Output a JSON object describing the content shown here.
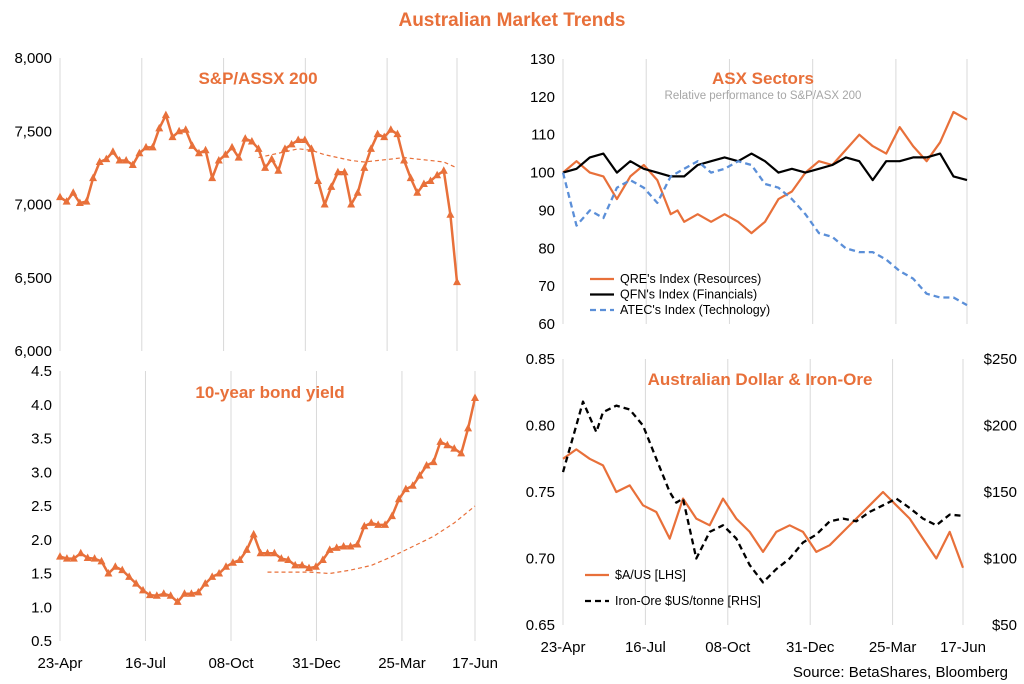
{
  "main_title": "Australian Market Trends",
  "source": "Source: BetaShares, Bloomberg",
  "colors": {
    "accent": "#e8703a",
    "black": "#000000",
    "blue": "#5b8fd8",
    "grid": "#d9d9d9"
  },
  "chart_data": [
    {
      "id": "asx200",
      "type": "line",
      "title": "S&P/ASSX 200",
      "ylim": [
        6000,
        8000
      ],
      "y_ticks": [
        "6,000",
        "6,500",
        "7,000",
        "7,500",
        "8,000"
      ],
      "x_range": [
        0,
        60
      ],
      "series": [
        {
          "style": "solid-triangles",
          "x": [
            0,
            1,
            2,
            3,
            4,
            5,
            6,
            7,
            8,
            9,
            10,
            11,
            12,
            13,
            14,
            15,
            16,
            17,
            18,
            19,
            20,
            21,
            22,
            23,
            24,
            25,
            26,
            27,
            28,
            29,
            30,
            31,
            32,
            33,
            34,
            35,
            36,
            37,
            38,
            39,
            40,
            41,
            42,
            43,
            44,
            45,
            46,
            47,
            48,
            49,
            50,
            51,
            52,
            53,
            54,
            55,
            56,
            57,
            58,
            59,
            60
          ],
          "y": [
            7050,
            7020,
            7080,
            7010,
            7020,
            7180,
            7290,
            7310,
            7360,
            7300,
            7300,
            7270,
            7350,
            7390,
            7390,
            7520,
            7610,
            7460,
            7500,
            7510,
            7400,
            7350,
            7370,
            7180,
            7300,
            7340,
            7390,
            7320,
            7450,
            7430,
            7380,
            7250,
            7310,
            7230,
            7380,
            7410,
            7440,
            7440,
            7380,
            7160,
            7000,
            7120,
            7220,
            7220,
            7000,
            7080,
            7250,
            7380,
            7480,
            7460,
            7510,
            7480,
            7300,
            7180,
            7080,
            7140,
            7160,
            7200,
            7230,
            6930,
            6470
          ]
        },
        {
          "style": "dashed",
          "x": [
            30,
            32,
            34,
            36,
            38,
            40,
            42,
            44,
            46,
            48,
            50,
            52,
            54,
            56,
            58,
            60
          ],
          "y": [
            7320,
            7340,
            7360,
            7380,
            7370,
            7340,
            7320,
            7300,
            7290,
            7300,
            7310,
            7320,
            7310,
            7300,
            7290,
            7250
          ]
        }
      ]
    },
    {
      "id": "bond",
      "type": "line",
      "title": "10-year bond yield",
      "ylim": [
        0.5,
        4.5
      ],
      "y_ticks": [
        "0.5",
        "1.0",
        "1.5",
        "2.0",
        "2.5",
        "3.0",
        "3.5",
        "4.0",
        "4.5"
      ],
      "x_ticks": [
        "23-Apr",
        "16-Jul",
        "08-Oct",
        "31-Dec",
        "25-Mar",
        "17-Jun"
      ],
      "x_range": [
        0,
        60
      ],
      "series": [
        {
          "style": "solid-triangles",
          "x": [
            0,
            1,
            2,
            3,
            4,
            5,
            6,
            7,
            8,
            9,
            10,
            11,
            12,
            13,
            14,
            15,
            16,
            17,
            18,
            19,
            20,
            21,
            22,
            23,
            24,
            25,
            26,
            27,
            28,
            29,
            30,
            31,
            32,
            33,
            34,
            35,
            36,
            37,
            38,
            39,
            40,
            41,
            42,
            43,
            44,
            45,
            46,
            47,
            48,
            49,
            50,
            51,
            52,
            53,
            54,
            55,
            56,
            57,
            58,
            59,
            60
          ],
          "y": [
            1.75,
            1.72,
            1.72,
            1.8,
            1.73,
            1.72,
            1.68,
            1.5,
            1.6,
            1.55,
            1.45,
            1.35,
            1.25,
            1.18,
            1.17,
            1.2,
            1.17,
            1.08,
            1.2,
            1.2,
            1.22,
            1.35,
            1.45,
            1.5,
            1.6,
            1.66,
            1.7,
            1.85,
            2.08,
            1.8,
            1.8,
            1.8,
            1.72,
            1.7,
            1.62,
            1.62,
            1.58,
            1.6,
            1.7,
            1.85,
            1.88,
            1.9,
            1.9,
            1.93,
            2.2,
            2.25,
            2.22,
            2.22,
            2.35,
            2.6,
            2.75,
            2.8,
            2.95,
            3.1,
            3.15,
            3.45,
            3.4,
            3.35,
            3.28,
            3.65,
            4.1
          ]
        },
        {
          "style": "dashed",
          "x": [
            30,
            33,
            36,
            39,
            42,
            45,
            48,
            51,
            54,
            57,
            60
          ],
          "y": [
            1.52,
            1.52,
            1.52,
            1.5,
            1.55,
            1.62,
            1.75,
            1.9,
            2.05,
            2.25,
            2.5
          ]
        }
      ]
    },
    {
      "id": "sectors",
      "type": "line",
      "title": "ASX Sectors",
      "subtitle": "Relative performance to S&P/ASX 200",
      "ylim": [
        60,
        130
      ],
      "y_ticks": [
        "60",
        "70",
        "80",
        "90",
        "100",
        "110",
        "120",
        "130"
      ],
      "x_range": [
        0,
        60
      ],
      "series": [
        {
          "name": "QRE's Index (Resources)",
          "style": "solid-orange",
          "x": [
            0,
            2,
            4,
            6,
            8,
            10,
            12,
            14,
            16,
            17,
            18,
            20,
            22,
            24,
            26,
            28,
            30,
            32,
            34,
            36,
            38,
            40,
            42,
            44,
            46,
            48,
            50,
            52,
            54,
            56,
            58,
            60
          ],
          "y": [
            100,
            103,
            100,
            99,
            93,
            99,
            102,
            98,
            89,
            90,
            87,
            89,
            87,
            89,
            87,
            84,
            87,
            93,
            95,
            100,
            103,
            102,
            106,
            110,
            107,
            105,
            112,
            107,
            103,
            108,
            116,
            114
          ]
        },
        {
          "name": "QFN's Index (Financials)",
          "style": "solid-black",
          "x": [
            0,
            2,
            4,
            6,
            8,
            10,
            12,
            14,
            16,
            18,
            20,
            22,
            24,
            26,
            28,
            30,
            32,
            34,
            36,
            38,
            40,
            42,
            44,
            46,
            48,
            50,
            52,
            54,
            56,
            58,
            60
          ],
          "y": [
            100,
            101,
            104,
            105,
            100,
            103,
            101,
            100,
            99,
            99,
            102,
            103,
            104,
            103,
            105,
            103,
            100,
            101,
            100,
            101,
            102,
            104,
            103,
            98,
            103,
            103,
            104,
            104,
            105,
            99,
            98
          ]
        },
        {
          "name": "ATEC's Index (Technology)",
          "style": "dashed-blue",
          "x": [
            0,
            2,
            4,
            6,
            8,
            10,
            12,
            14,
            16,
            18,
            20,
            22,
            24,
            26,
            28,
            30,
            32,
            34,
            36,
            38,
            40,
            42,
            44,
            46,
            48,
            50,
            52,
            54,
            56,
            58,
            60
          ],
          "y": [
            100,
            86,
            90,
            88,
            96,
            98,
            96,
            92,
            99,
            101,
            103,
            100,
            101,
            103,
            102,
            97,
            96,
            93,
            89,
            84,
            83,
            80,
            79,
            79,
            77,
            74,
            72,
            68,
            67,
            67,
            65
          ]
        }
      ]
    },
    {
      "id": "aud_iron",
      "type": "line",
      "title": "Australian Dollar & Iron-Ore",
      "ylim": [
        0.65,
        0.85
      ],
      "y_ticks": [
        "0.65",
        "0.70",
        "0.75",
        "0.80",
        "0.85"
      ],
      "y2lim": [
        50,
        250
      ],
      "y2_ticks": [
        "$50",
        "$100",
        "$150",
        "$200",
        "$250"
      ],
      "x_ticks": [
        "23-Apr",
        "16-Jul",
        "08-Oct",
        "31-Dec",
        "25-Mar",
        "17-Jun"
      ],
      "x_range": [
        0,
        60
      ],
      "series": [
        {
          "name": "$A/US [LHS]",
          "style": "solid-orange",
          "axis": "left",
          "x": [
            0,
            2,
            4,
            6,
            8,
            10,
            12,
            14,
            16,
            18,
            20,
            22,
            24,
            26,
            28,
            30,
            32,
            34,
            36,
            38,
            40,
            42,
            44,
            46,
            48,
            50,
            52,
            54,
            56,
            58,
            60
          ],
          "y": [
            0.775,
            0.782,
            0.775,
            0.77,
            0.75,
            0.755,
            0.74,
            0.735,
            0.715,
            0.745,
            0.73,
            0.725,
            0.745,
            0.73,
            0.72,
            0.705,
            0.72,
            0.725,
            0.72,
            0.705,
            0.71,
            0.72,
            0.73,
            0.74,
            0.75,
            0.74,
            0.73,
            0.715,
            0.7,
            0.72,
            0.693
          ]
        },
        {
          "name": "Iron-Ore $US/tonne [RHS]",
          "style": "dashed-black",
          "axis": "right",
          "x": [
            0,
            2,
            3,
            5,
            6,
            8,
            10,
            12,
            14,
            16,
            17,
            18,
            20,
            22,
            24,
            26,
            28,
            30,
            32,
            34,
            36,
            38,
            40,
            42,
            44,
            46,
            48,
            50,
            52,
            54,
            56,
            58,
            60
          ],
          "y": [
            165,
            200,
            218,
            195,
            210,
            215,
            212,
            200,
            175,
            150,
            142,
            145,
            100,
            120,
            125,
            115,
            95,
            82,
            92,
            100,
            112,
            118,
            128,
            130,
            128,
            135,
            140,
            145,
            138,
            130,
            125,
            133,
            132
          ]
        }
      ]
    }
  ]
}
